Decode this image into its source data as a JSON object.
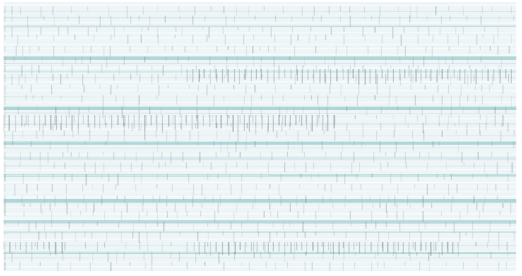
{
  "image": {
    "subject": "woven-fabric-texture",
    "colors": {
      "background": "#ffffff",
      "base": "#eef5f7",
      "stripe": "#9fd0cf",
      "stripe_light": "#c6e3e4",
      "thread_dark": "#6f7f86",
      "thread_mid": "#9aa9b0",
      "thread_light": "#c9d6dc"
    }
  }
}
